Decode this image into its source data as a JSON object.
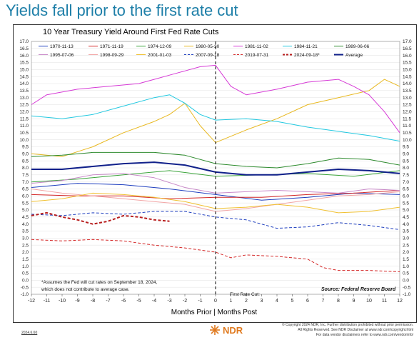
{
  "headline": "Yields fall prior to the first rate cut",
  "footer": {
    "link_text": "2024.6.60",
    "copyright_lines": [
      "© Copyright 2024 NDR, Inc. Further distribution prohibited without prior permission.",
      "All Rights Reserved. See NDR Disclaimer at www.ndr.com/copyright.html",
      "For data vendor disclaimers refer to www.ndr.com/vendorinfo/"
    ],
    "logo_text": "NDR",
    "logo_icon": "ndr-logo-icon"
  },
  "chart_data": {
    "type": "line",
    "title": "10 Year Treasury Yield Around First Fed Rate Cuts",
    "xlabel": "Months Prior | Months Post",
    "ylabel": "",
    "xlim": [
      -12,
      12
    ],
    "ylim": [
      -1.0,
      17.0
    ],
    "x_ticks": [
      -12,
      -11,
      -10,
      -9,
      -8,
      -7,
      -6,
      -5,
      -4,
      -3,
      -2,
      -1,
      0,
      1,
      2,
      3,
      4,
      5,
      6,
      7,
      8,
      9,
      10,
      11,
      12
    ],
    "y_ticks": [
      -1.0,
      -0.5,
      0.0,
      0.5,
      1.0,
      1.5,
      2.0,
      2.5,
      3.0,
      3.5,
      4.0,
      4.5,
      5.0,
      5.5,
      6.0,
      6.5,
      7.0,
      7.5,
      8.0,
      8.5,
      9.0,
      9.5,
      10.0,
      10.5,
      11.0,
      11.5,
      12.0,
      12.5,
      13.0,
      13.5,
      14.0,
      14.5,
      15.0,
      15.5,
      16.0,
      16.5,
      17.0
    ],
    "grid": true,
    "dual_y_axis": true,
    "legend_position": "top",
    "vertical_marker": {
      "x": 0,
      "label": "First Rate Cut:"
    },
    "annotation": "*Assumes the Fed will cut rates on September 18, 2024, which does not contribute to average case.",
    "source": "Source:  Federal Reserve Board",
    "series": [
      {
        "name": "1970-11-13",
        "color": "#1f3fbf",
        "dash": "solid",
        "width": 1,
        "x": [
          -12,
          -9,
          -6,
          -3,
          0,
          3,
          6,
          9,
          12
        ],
        "y": [
          6.6,
          6.9,
          6.8,
          6.5,
          6.1,
          5.7,
          5.9,
          6.2,
          6.1
        ]
      },
      {
        "name": "1971-11-19",
        "color": "#d42828",
        "dash": "solid",
        "width": 1,
        "x": [
          -12,
          -9,
          -6,
          -3,
          0,
          3,
          6,
          9,
          12
        ],
        "y": [
          6.1,
          6.0,
          6.0,
          5.8,
          5.9,
          5.9,
          6.1,
          6.2,
          6.4
        ]
      },
      {
        "name": "1974-12-09",
        "color": "#3aa33a",
        "dash": "solid",
        "width": 1,
        "x": [
          -12,
          -9,
          -6,
          -3,
          0,
          3,
          6,
          9,
          12
        ],
        "y": [
          7.0,
          7.2,
          7.5,
          7.8,
          7.4,
          7.5,
          7.6,
          7.4,
          7.8
        ]
      },
      {
        "name": "1980-05-30",
        "color": "#e8b820",
        "dash": "solid",
        "width": 1,
        "x": [
          -12,
          -10,
          -8,
          -6,
          -4,
          -3,
          -2,
          -1,
          0,
          2,
          4,
          6,
          8,
          10,
          11,
          12
        ],
        "y": [
          9.0,
          8.8,
          9.5,
          10.5,
          11.3,
          11.8,
          12.6,
          11.0,
          9.8,
          10.7,
          11.5,
          12.5,
          13.0,
          13.5,
          14.3,
          13.8
        ]
      },
      {
        "name": "1981-11-02",
        "color": "#d63ad6",
        "dash": "solid",
        "width": 1,
        "x": [
          -12,
          -11,
          -9,
          -7,
          -5,
          -4,
          -3,
          -2,
          -1,
          0,
          1,
          2,
          4,
          6,
          8,
          9,
          10,
          11,
          12
        ],
        "y": [
          12.5,
          13.2,
          13.6,
          13.8,
          14.0,
          14.3,
          14.6,
          14.9,
          15.2,
          15.3,
          13.8,
          13.2,
          13.6,
          14.1,
          14.3,
          13.8,
          13.2,
          12.0,
          10.5
        ]
      },
      {
        "name": "1984-11-21",
        "color": "#22c8e0",
        "dash": "solid",
        "width": 1,
        "x": [
          -12,
          -10,
          -8,
          -6,
          -4,
          -3,
          -2,
          -1,
          0,
          2,
          4,
          6,
          8,
          10,
          12
        ],
        "y": [
          11.7,
          11.5,
          11.8,
          12.4,
          13.0,
          13.2,
          12.6,
          11.8,
          11.4,
          11.5,
          11.3,
          10.9,
          10.6,
          10.3,
          9.9
        ]
      },
      {
        "name": "1989-06-06",
        "color": "#2e8b2e",
        "dash": "solid",
        "width": 1,
        "x": [
          -12,
          -10,
          -8,
          -6,
          -4,
          -2,
          0,
          2,
          4,
          6,
          8,
          10,
          12
        ],
        "y": [
          8.8,
          8.9,
          9.1,
          9.1,
          9.1,
          8.9,
          8.3,
          8.1,
          8.0,
          8.3,
          8.7,
          8.6,
          8.2
        ]
      },
      {
        "name": "1995-07-06",
        "color": "#c98ac9",
        "dash": "solid",
        "width": 1,
        "x": [
          -12,
          -10,
          -8,
          -6,
          -4,
          -2,
          0,
          2,
          4,
          6,
          8,
          10,
          12
        ],
        "y": [
          6.9,
          7.1,
          7.5,
          7.6,
          7.3,
          6.6,
          6.2,
          6.3,
          6.4,
          6.3,
          6.2,
          6.5,
          6.4
        ]
      },
      {
        "name": "1998-09-29",
        "color": "#f2a5a5",
        "dash": "solid",
        "width": 1,
        "x": [
          -12,
          -10,
          -8,
          -6,
          -4,
          -2,
          0,
          2,
          4,
          6,
          8,
          10,
          12
        ],
        "y": [
          6.5,
          6.2,
          6.0,
          5.8,
          5.6,
          5.4,
          4.9,
          5.1,
          5.4,
          5.7,
          6.0,
          6.1,
          6.3
        ]
      },
      {
        "name": "2001-01-03",
        "color": "#f0c030",
        "dash": "solid",
        "width": 1,
        "x": [
          -12,
          -10,
          -8,
          -6,
          -4,
          -2,
          0,
          2,
          4,
          6,
          8,
          10,
          12
        ],
        "y": [
          5.6,
          5.8,
          6.2,
          6.1,
          5.9,
          5.6,
          5.1,
          5.2,
          5.4,
          5.2,
          4.8,
          4.9,
          5.2
        ]
      },
      {
        "name": "2007-09-18",
        "color": "#1f3fbf",
        "dash": "dashed",
        "width": 1,
        "x": [
          -12,
          -10,
          -8,
          -6,
          -4,
          -2,
          0,
          2,
          4,
          6,
          8,
          10,
          12
        ],
        "y": [
          4.7,
          4.6,
          4.8,
          4.7,
          4.9,
          4.9,
          4.5,
          4.3,
          3.7,
          3.8,
          4.1,
          3.9,
          3.6
        ]
      },
      {
        "name": "2019-07-31",
        "color": "#d42828",
        "dash": "dashed",
        "width": 1,
        "x": [
          -12,
          -10,
          -8,
          -6,
          -4,
          -2,
          0,
          1,
          2,
          4,
          6,
          7,
          8,
          10,
          12
        ],
        "y": [
          2.9,
          2.8,
          2.9,
          2.8,
          2.5,
          2.3,
          2.0,
          1.6,
          1.8,
          1.7,
          1.5,
          0.9,
          0.7,
          0.7,
          0.6
        ]
      },
      {
        "name": "2024-09-18*",
        "color": "#b81e1e",
        "dash": "dashed",
        "width": 2,
        "x": [
          -12,
          -11,
          -10,
          -9,
          -8,
          -7,
          -6,
          -5,
          -4,
          -3
        ],
        "y": [
          4.6,
          4.8,
          4.5,
          4.3,
          4.0,
          4.2,
          4.6,
          4.5,
          4.3,
          4.2
        ]
      },
      {
        "name": "Average",
        "color": "#10208a",
        "dash": "solid",
        "width": 2,
        "x": [
          -12,
          -10,
          -8,
          -6,
          -4,
          -2,
          0,
          2,
          4,
          6,
          8,
          10,
          12
        ],
        "y": [
          7.9,
          7.9,
          8.1,
          8.3,
          8.4,
          8.2,
          7.7,
          7.5,
          7.5,
          7.7,
          7.9,
          7.8,
          7.6
        ]
      }
    ]
  }
}
